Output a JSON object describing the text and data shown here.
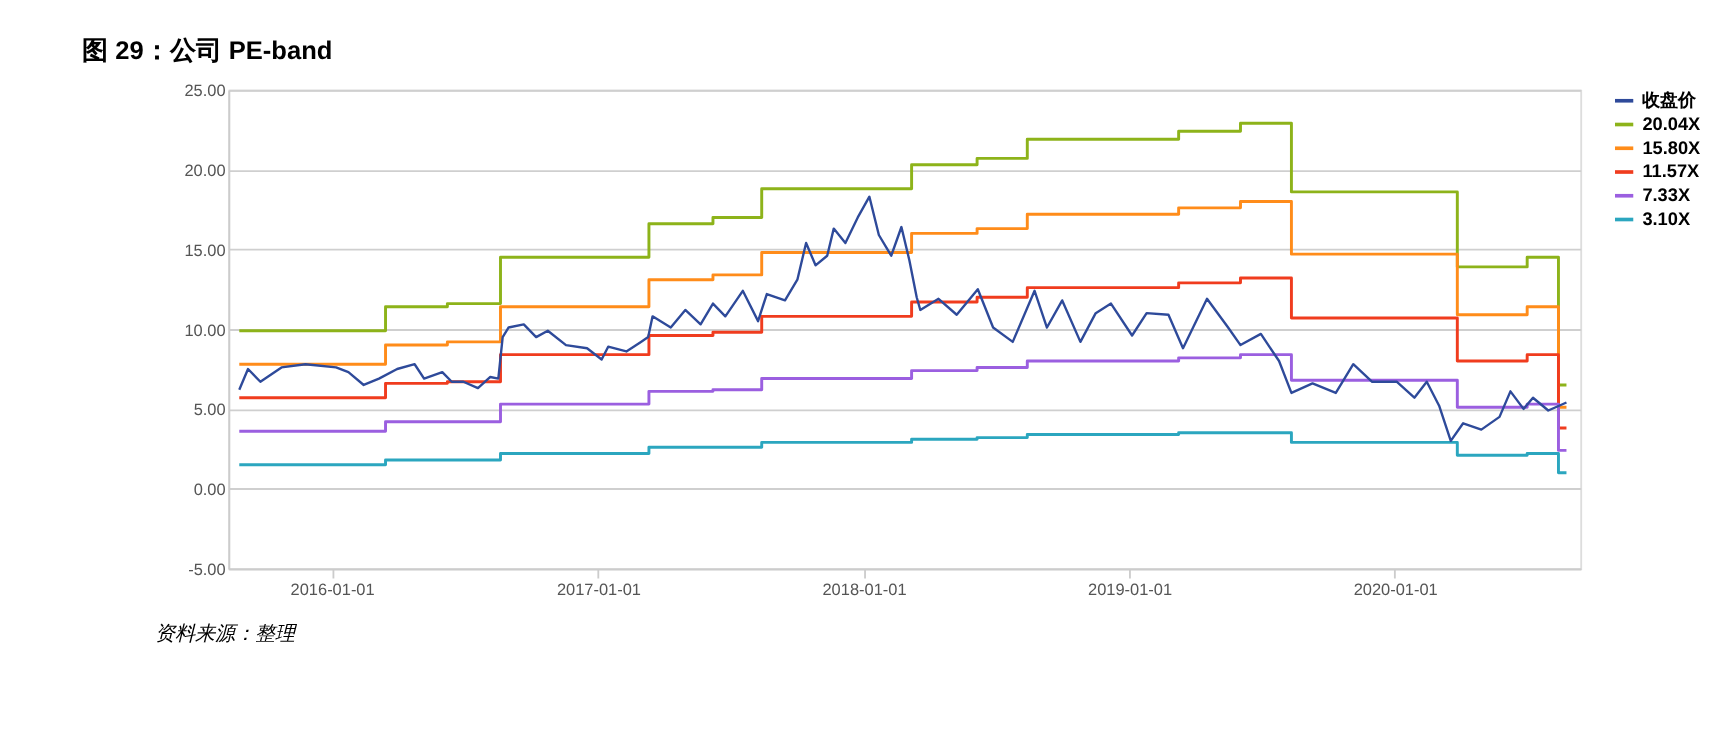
{
  "chart_data": {
    "type": "line",
    "title": "图 29：公司 PE-band",
    "annotations": [
      "资料来源：整理"
    ],
    "xlim": [
      "2015-08-12",
      "2020-09-12"
    ],
    "xticks": [
      "2016-01-01",
      "2017-01-01",
      "2018-01-01",
      "2019-01-01",
      "2020-01-01"
    ],
    "ylim": [
      -5,
      25
    ],
    "yticks": [
      {
        "value": -5,
        "label": "-5.00"
      },
      {
        "value": 0,
        "label": "0.00"
      },
      {
        "value": 5,
        "label": "5.00"
      },
      {
        "value": 10,
        "label": "10.00"
      },
      {
        "value": 15,
        "label": "15.00"
      },
      {
        "value": 20,
        "label": "20.00"
      },
      {
        "value": 25,
        "label": "25.00"
      }
    ],
    "grid": "y",
    "legend": "right",
    "series": [
      {
        "name": "收盘价",
        "color": "#2e4a9a",
        "x": [
          "2015-08-27",
          "2015-09-08",
          "2015-09-25",
          "2015-10-24",
          "2015-11-26",
          "2016-01-07",
          "2016-01-24",
          "2016-02-14",
          "2016-03-06",
          "2016-03-31",
          "2016-04-24",
          "2016-05-07",
          "2016-06-01",
          "2016-06-14",
          "2016-06-30",
          "2016-07-20",
          "2016-08-06",
          "2016-08-17",
          "2016-08-23",
          "2016-08-31",
          "2016-09-21",
          "2016-10-08",
          "2016-10-24",
          "2016-11-18",
          "2016-12-17",
          "2017-01-06",
          "2017-01-15",
          "2017-02-09",
          "2017-03-01",
          "2017-03-11",
          "2017-03-17",
          "2017-04-11",
          "2017-05-01",
          "2017-05-22",
          "2017-06-08",
          "2017-06-25",
          "2017-07-19",
          "2017-08-09",
          "2017-08-21",
          "2017-09-15",
          "2017-10-02",
          "2017-10-14",
          "2017-10-27",
          "2017-11-12",
          "2017-11-21",
          "2017-12-07",
          "2017-12-24",
          "2018-01-09",
          "2018-01-22",
          "2018-02-08",
          "2018-02-22",
          "2018-03-05",
          "2018-03-15",
          "2018-03-20",
          "2018-04-14",
          "2018-05-09",
          "2018-06-07",
          "2018-06-28",
          "2018-07-25",
          "2018-08-24",
          "2018-09-10",
          "2018-10-01",
          "2018-10-26",
          "2018-11-16",
          "2018-12-07",
          "2019-01-05",
          "2019-01-25",
          "2019-02-24",
          "2019-03-16",
          "2019-04-18",
          "2019-05-17",
          "2019-06-03",
          "2019-07-01",
          "2019-07-26",
          "2019-08-12",
          "2019-09-10",
          "2019-10-12",
          "2019-11-05",
          "2019-12-01",
          "2020-01-04",
          "2020-01-28",
          "2020-02-14",
          "2020-03-02",
          "2020-03-18",
          "2020-04-04",
          "2020-04-29",
          "2020-05-24",
          "2020-06-08",
          "2020-06-26",
          "2020-07-09",
          "2020-07-30",
          "2020-08-24"
        ],
        "values": [
          6.2,
          7.5,
          6.7,
          7.6,
          7.8,
          7.6,
          7.3,
          6.5,
          6.9,
          7.5,
          7.8,
          6.9,
          7.3,
          6.7,
          6.7,
          6.3,
          7.0,
          6.9,
          9.5,
          10.1,
          10.3,
          9.5,
          9.9,
          9.0,
          8.8,
          8.1,
          8.9,
          8.6,
          9.2,
          9.5,
          10.8,
          10.1,
          11.2,
          10.3,
          11.6,
          10.8,
          12.4,
          10.5,
          12.2,
          11.8,
          13.1,
          15.4,
          14.0,
          14.6,
          16.3,
          15.4,
          17.0,
          18.3,
          15.9,
          14.6,
          16.4,
          14.3,
          12.0,
          11.2,
          11.9,
          10.9,
          12.5,
          10.1,
          9.2,
          12.4,
          10.1,
          11.8,
          9.2,
          11.0,
          11.6,
          9.6,
          11.0,
          10.9,
          8.8,
          11.9,
          10.1,
          9.0,
          9.7,
          8.0,
          6.0,
          6.6,
          6.0,
          7.8,
          6.7,
          6.7,
          5.7,
          6.7,
          5.2,
          3.0,
          4.1,
          3.7,
          4.5,
          6.1,
          5.0,
          5.7,
          4.9,
          5.4
        ]
      },
      {
        "name": "20.04X",
        "color": "#8db31a",
        "type": "step",
        "values": [
          9.9,
          11.4,
          11.6,
          14.5,
          16.6,
          17.0,
          18.8,
          20.3,
          20.7,
          21.9,
          22.4,
          22.9,
          18.6,
          13.9,
          14.5,
          6.5,
          6.5
        ]
      },
      {
        "name": "15.80X",
        "color": "#ff8c1a",
        "type": "step",
        "values": [
          7.8,
          9.0,
          9.2,
          11.4,
          13.1,
          13.4,
          14.8,
          16.0,
          16.3,
          17.2,
          17.6,
          18.0,
          14.7,
          10.9,
          11.4,
          5.1,
          5.1
        ]
      },
      {
        "name": "11.57X",
        "color": "#f03c1e",
        "type": "step",
        "values": [
          5.7,
          6.6,
          6.7,
          8.4,
          9.6,
          9.8,
          10.8,
          11.7,
          12.0,
          12.6,
          12.9,
          13.2,
          10.7,
          8.0,
          8.4,
          3.8,
          3.8
        ]
      },
      {
        "name": "7.33X",
        "color": "#9b5fe0",
        "type": "step",
        "values": [
          3.6,
          4.2,
          4.2,
          5.3,
          6.1,
          6.2,
          6.9,
          7.4,
          7.6,
          8.0,
          8.2,
          8.4,
          6.8,
          5.1,
          5.3,
          2.4,
          2.4
        ]
      },
      {
        "name": "3.10X",
        "color": "#2ba6bf",
        "type": "step",
        "values": [
          1.5,
          1.8,
          1.8,
          2.2,
          2.6,
          2.6,
          2.9,
          3.1,
          3.2,
          3.4,
          3.5,
          3.5,
          2.9,
          2.1,
          2.2,
          1.0,
          1.0
        ]
      }
    ],
    "x": [
      "2015-08-27",
      "2016-03-15",
      "2016-06-08",
      "2016-08-20",
      "2017-03-12",
      "2017-06-08",
      "2017-08-14",
      "2018-03-08",
      "2018-06-06",
      "2018-08-14",
      "2019-03-10",
      "2019-06-03",
      "2019-08-12",
      "2020-03-27",
      "2020-07-01",
      "2020-08-13",
      "2020-08-24"
    ]
  }
}
